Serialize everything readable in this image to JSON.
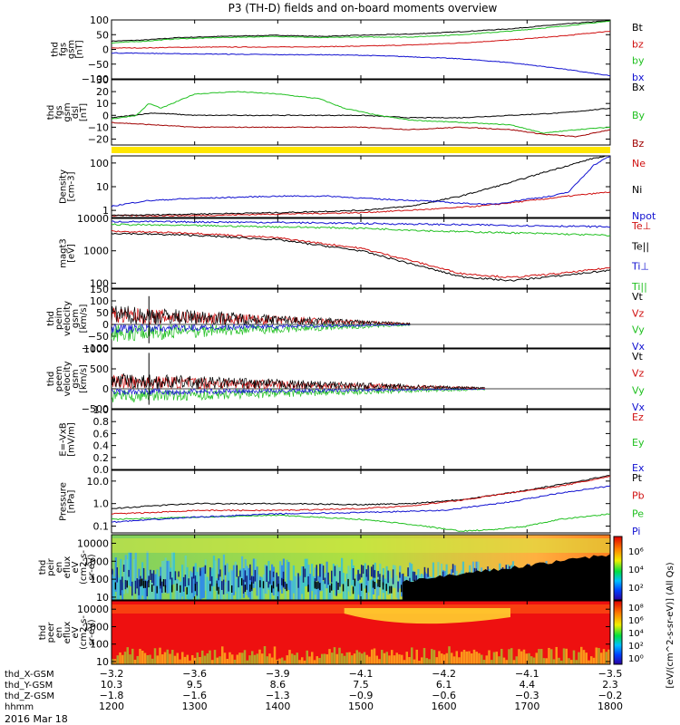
{
  "title": "P3 (TH-D) fields and on-board moments overview",
  "date_label": "2016 Mar 18",
  "colorbar_label": "[eV/(cm^2-s-sr-eV)] (All Qs)",
  "chart_data": [
    {
      "type": "line",
      "id": "fgs_btot",
      "ylabel": [
        "thd",
        "fgs",
        "gsm",
        "[nT]"
      ],
      "ylim": [
        -100,
        100
      ],
      "yticks": [
        100,
        50,
        0,
        -50,
        -100
      ],
      "tick_labels": [
        "100",
        "50",
        "0",
        "−50",
        "−100"
      ],
      "series": [
        {
          "name": "Bt",
          "color": "#000000",
          "x": [
            1200,
            1240,
            1280,
            1330,
            1400,
            1450,
            1500,
            1560,
            1620,
            1680,
            1740,
            1800
          ],
          "values": [
            28,
            32,
            40,
            44,
            48,
            44,
            48,
            52,
            60,
            70,
            85,
            98
          ]
        },
        {
          "name": "bz",
          "color": "#d01010",
          "x": [
            1200,
            1240,
            1280,
            1330,
            1400,
            1450,
            1500,
            1560,
            1620,
            1680,
            1740,
            1800
          ],
          "values": [
            5,
            5,
            7,
            8,
            8,
            9,
            11,
            15,
            22,
            32,
            45,
            62
          ]
        },
        {
          "name": "by",
          "color": "#20c020",
          "x": [
            1200,
            1240,
            1280,
            1330,
            1400,
            1450,
            1500,
            1560,
            1620,
            1680,
            1740,
            1800
          ],
          "values": [
            22,
            28,
            36,
            40,
            44,
            40,
            42,
            42,
            50,
            62,
            78,
            96
          ]
        },
        {
          "name": "bx",
          "color": "#1010d0",
          "x": [
            1200,
            1240,
            1280,
            1330,
            1400,
            1450,
            1500,
            1560,
            1620,
            1680,
            1740,
            1800
          ],
          "values": [
            -12,
            -13,
            -15,
            -16,
            -18,
            -18,
            -20,
            -25,
            -32,
            -45,
            -65,
            -90
          ]
        }
      ]
    },
    {
      "type": "line",
      "id": "fgs_comp",
      "ylabel": [
        "thd",
        "fgs",
        "gsm",
        "dsl",
        "[nT]"
      ],
      "ylim": [
        -25,
        30
      ],
      "yticks": [
        30,
        20,
        10,
        0,
        -10,
        -20
      ],
      "tick_labels": [
        "30",
        "20",
        "10",
        "0",
        "−10",
        "−20"
      ],
      "series": [
        {
          "name": "Bx",
          "color": "#000000",
          "x": [
            1200,
            1250,
            1300,
            1400,
            1500,
            1560,
            1620,
            1680,
            1740,
            1800
          ],
          "values": [
            -2,
            2,
            0,
            0,
            0,
            -2,
            -2,
            0,
            2,
            6
          ]
        },
        {
          "name": "By",
          "color": "#20c020",
          "x": [
            1200,
            1230,
            1245,
            1260,
            1300,
            1350,
            1400,
            1450,
            1480,
            1520,
            1560,
            1620,
            1680,
            1720,
            1760,
            1800
          ],
          "values": [
            -3,
            0,
            10,
            6,
            18,
            20,
            18,
            14,
            6,
            0,
            -4,
            -6,
            -8,
            -15,
            -12,
            -10
          ]
        },
        {
          "name": "Bz",
          "color": "#a00000",
          "x": [
            1200,
            1250,
            1300,
            1400,
            1500,
            1560,
            1620,
            1680,
            1720,
            1760,
            1800
          ],
          "values": [
            -6,
            -8,
            -10,
            -10,
            -10,
            -12,
            -10,
            -12,
            -16,
            -18,
            -12
          ]
        }
      ]
    },
    {
      "type": "line",
      "id": "density",
      "ylabel": [
        "Density",
        "[cm-3]"
      ],
      "log": true,
      "ylim": [
        0.5,
        200
      ],
      "yticks": [
        100,
        10,
        1
      ],
      "tick_labels": [
        "100",
        "10",
        "1"
      ],
      "series": [
        {
          "name": "Ne",
          "color": "#d01010",
          "x": [
            1200,
            1300,
            1400,
            1500,
            1600,
            1650,
            1700,
            1750,
            1800
          ],
          "values": [
            0.6,
            0.6,
            0.7,
            0.8,
            1.2,
            1.6,
            2.5,
            4,
            6
          ]
        },
        {
          "name": "Ni",
          "color": "#000000",
          "x": [
            1200,
            1300,
            1400,
            1500,
            1560,
            1620,
            1680,
            1720,
            1760,
            1780,
            1800
          ],
          "values": [
            0.6,
            0.7,
            0.8,
            1.0,
            1.5,
            4,
            15,
            40,
            100,
            160,
            200
          ]
        },
        {
          "name": "Npot",
          "color": "#1010d0",
          "x": [
            1200,
            1240,
            1280,
            1340,
            1400,
            1460,
            1520,
            1580,
            1620,
            1660,
            1700,
            1730,
            1750,
            1780,
            1800
          ],
          "values": [
            1.5,
            2.5,
            3,
            3.5,
            4,
            4,
            3,
            2.5,
            2,
            1.8,
            3,
            4,
            6,
            80,
            200
          ]
        }
      ]
    },
    {
      "type": "line",
      "id": "temps",
      "ylabel": [
        "magt3",
        "[eV]"
      ],
      "log": true,
      "ylim": [
        70,
        10000
      ],
      "yticks": [
        10000,
        1000,
        100
      ],
      "tick_labels": [
        "10000",
        "1000",
        "100"
      ],
      "series": [
        {
          "name": "Te⊥",
          "color": "#d01010",
          "x": [
            1200,
            1300,
            1400,
            1500,
            1560,
            1620,
            1680,
            1740,
            1800
          ],
          "values": [
            4000,
            3500,
            2500,
            1200,
            500,
            200,
            150,
            200,
            300
          ]
        },
        {
          "name": "Te||",
          "color": "#000000",
          "x": [
            1200,
            1300,
            1400,
            1500,
            1560,
            1620,
            1680,
            1740,
            1800
          ],
          "values": [
            3500,
            3000,
            2200,
            1000,
            400,
            160,
            120,
            170,
            250
          ]
        },
        {
          "name": "Ti⊥",
          "color": "#1010d0",
          "x": [
            1200,
            1300,
            1400,
            1500,
            1600,
            1700,
            1800
          ],
          "values": [
            8000,
            7800,
            7500,
            7000,
            6500,
            6000,
            5500
          ]
        },
        {
          "name": "Ti||",
          "color": "#20c020",
          "x": [
            1200,
            1300,
            1400,
            1500,
            1600,
            1700,
            1800
          ],
          "values": [
            6500,
            6000,
            5500,
            5000,
            4000,
            3500,
            3000
          ]
        }
      ]
    },
    {
      "type": "line",
      "id": "peim_vel",
      "ylabel": [
        "thd",
        "peim",
        "velocity",
        "gsm",
        "[km/s]"
      ],
      "ylim": [
        -100,
        150
      ],
      "yticks": [
        150,
        100,
        50,
        0,
        -50,
        -100
      ],
      "tick_labels": [
        "150",
        "100",
        "50",
        "0",
        "−50",
        "−100"
      ],
      "series": [
        {
          "name": "Vt",
          "color": "#000000"
        },
        {
          "name": "Vz",
          "color": "#d01010"
        },
        {
          "name": "Vy",
          "color": "#20c020"
        },
        {
          "name": "Vx",
          "color": "#1010d0"
        }
      ]
    },
    {
      "type": "line",
      "id": "peem_vel",
      "ylabel": [
        "thd",
        "peem",
        "velocity",
        "gsm",
        "[km/s]"
      ],
      "ylim": [
        -500,
        1000
      ],
      "yticks": [
        1000,
        500,
        0,
        -500
      ],
      "tick_labels": [
        "1000",
        "500",
        "0",
        "−500"
      ],
      "series": [
        {
          "name": "Vt",
          "color": "#000000"
        },
        {
          "name": "Vz",
          "color": "#d01010"
        },
        {
          "name": "Vy",
          "color": "#20c020"
        },
        {
          "name": "Vx",
          "color": "#1010d0"
        }
      ]
    },
    {
      "type": "line",
      "id": "efield",
      "ylabel": [
        "E=-VxB",
        "[mV/m]"
      ],
      "ylim": [
        0,
        1
      ],
      "yticks": [
        1.0,
        0.8,
        0.6,
        0.4,
        0.2,
        0.0
      ],
      "tick_labels": [
        "1.0",
        "0.8",
        "0.6",
        "0.4",
        "0.2",
        "0.0"
      ],
      "series": [
        {
          "name": "Ez",
          "color": "#d01010"
        },
        {
          "name": "Ey",
          "color": "#20c020"
        },
        {
          "name": "Ex",
          "color": "#1010d0"
        }
      ]
    },
    {
      "type": "line",
      "id": "pressure",
      "ylabel": [
        "Pressure",
        "[nPa]"
      ],
      "log": true,
      "ylim": [
        0.05,
        30
      ],
      "yticks": [
        10,
        1,
        0.1
      ],
      "tick_labels": [
        "10.0",
        "1.0",
        "0.1"
      ],
      "series": [
        {
          "name": "Pt",
          "color": "#000000",
          "x": [
            1200,
            1250,
            1300,
            1400,
            1500,
            1560,
            1620,
            1680,
            1740,
            1800
          ],
          "values": [
            0.6,
            0.8,
            1.0,
            1.0,
            0.9,
            1.0,
            1.5,
            3,
            7,
            18
          ]
        },
        {
          "name": "Pb",
          "color": "#d01010",
          "x": [
            1200,
            1250,
            1300,
            1400,
            1500,
            1560,
            1620,
            1680,
            1740,
            1800
          ],
          "values": [
            0.35,
            0.4,
            0.5,
            0.5,
            0.6,
            0.8,
            1.4,
            3,
            6,
            16
          ]
        },
        {
          "name": "Pe",
          "color": "#20c020",
          "x": [
            1200,
            1300,
            1400,
            1500,
            1560,
            1620,
            1660,
            1700,
            1740,
            1800
          ],
          "values": [
            0.2,
            0.25,
            0.3,
            0.2,
            0.12,
            0.06,
            0.07,
            0.1,
            0.2,
            0.35
          ]
        },
        {
          "name": "Pi",
          "color": "#1010d0",
          "x": [
            1200,
            1300,
            1400,
            1500,
            1600,
            1680,
            1740,
            1800
          ],
          "values": [
            0.15,
            0.25,
            0.35,
            0.4,
            0.5,
            1.2,
            3,
            6
          ]
        }
      ]
    },
    {
      "type": "heatmap",
      "id": "peir_en",
      "ylabel": [
        "thd",
        "peir",
        "en",
        "eflux",
        "eV",
        "(cm2-s-",
        "sr-eV)"
      ],
      "log": true,
      "ylim": [
        7,
        30000
      ],
      "yticks": [
        10000,
        1000,
        100,
        10
      ],
      "tick_labels": [
        "10000",
        "1000",
        "100",
        "10"
      ]
    },
    {
      "type": "heatmap",
      "id": "peer_en",
      "ylabel": [
        "thd",
        "peer",
        "en",
        "eflux",
        "eV",
        "(cm2-s-",
        "sr-eV)"
      ],
      "log": true,
      "ylim": [
        7,
        30000
      ],
      "yticks": [
        10000,
        1000,
        100,
        10
      ],
      "tick_labels": [
        "10000",
        "1000",
        "100",
        "10"
      ]
    }
  ],
  "colorbar": {
    "upper": {
      "tick_labels": [
        "10⁶",
        "10⁴",
        "10²"
      ]
    },
    "lower": {
      "tick_labels": [
        "10⁸",
        "10⁶",
        "10⁴",
        "10²",
        "10⁰"
      ]
    }
  },
  "xaxis": {
    "time_ticks": [
      1200,
      1300,
      1400,
      1500,
      1600,
      1700,
      1800
    ],
    "rows": [
      {
        "label": "thd_X-GSM",
        "values": [
          "−3.2",
          "−3.6",
          "−3.9",
          "−4.1",
          "−4.2",
          "−4.1",
          "−3.5"
        ]
      },
      {
        "label": "thd_Y-GSM",
        "values": [
          "10.3",
          "9.5",
          "8.6",
          "7.5",
          "6.1",
          "4.4",
          "2.3"
        ]
      },
      {
        "label": "thd_Z-GSM",
        "values": [
          "−1.8",
          "−1.6",
          "−1.3",
          "−0.9",
          "−0.6",
          "−0.3",
          "−0.2"
        ]
      },
      {
        "label": "hhmm",
        "values": [
          "1200",
          "1300",
          "1400",
          "1500",
          "1600",
          "1700",
          "1800"
        ]
      }
    ]
  }
}
